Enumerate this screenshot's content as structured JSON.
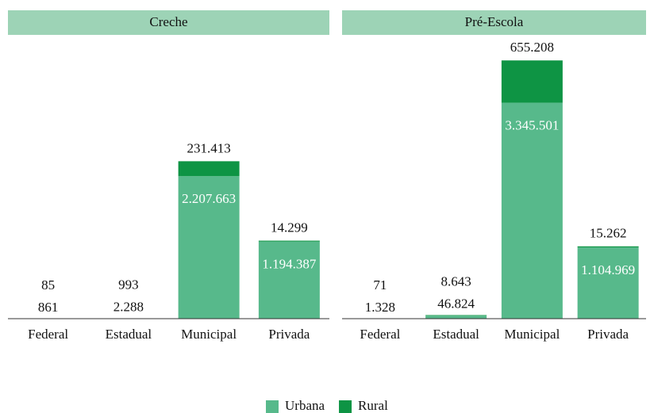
{
  "chart_data": [
    {
      "type": "bar",
      "stacked": true,
      "title": "Creche",
      "categories": [
        "Federal",
        "Estadual",
        "Municipal",
        "Privada"
      ],
      "series": [
        {
          "name": "Urbana",
          "color": "#57b98b",
          "values": [
            861,
            2288,
            2207663,
            1194387
          ],
          "value_labels": [
            "861",
            "2.288",
            "2.207.663",
            "1.194.387"
          ]
        },
        {
          "name": "Rural",
          "color": "#0e9444",
          "values": [
            85,
            993,
            231413,
            14299
          ],
          "value_labels": [
            "85",
            "993",
            "231.413",
            "14.299"
          ]
        }
      ],
      "ylim": [
        0,
        4200000
      ]
    },
    {
      "type": "bar",
      "stacked": true,
      "title": "Pré-Escola",
      "categories": [
        "Federal",
        "Estadual",
        "Municipal",
        "Privada"
      ],
      "series": [
        {
          "name": "Urbana",
          "color": "#57b98b",
          "values": [
            1328,
            46824,
            3345501,
            1104969
          ],
          "value_labels": [
            "1.328",
            "46.824",
            "3.345.501",
            "1.104.969"
          ]
        },
        {
          "name": "Rural",
          "color": "#0e9444",
          "values": [
            71,
            8643,
            655208,
            15262
          ],
          "value_labels": [
            "71",
            "8.643",
            "655.208",
            "15.262"
          ]
        }
      ],
      "ylim": [
        0,
        4200000
      ]
    }
  ]
}
